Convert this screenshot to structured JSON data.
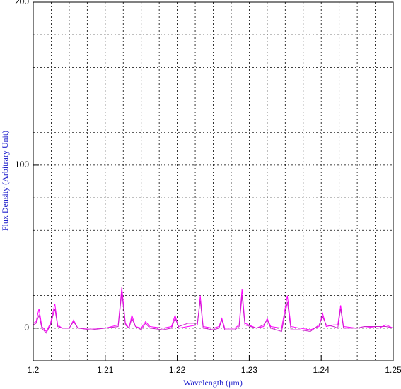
{
  "chart_data": {
    "type": "line",
    "x_label": "Wavelength (μm)",
    "y_label": "Flux Density (Arbitrary Unit)",
    "x": [
      1.2,
      1.2004,
      1.2008,
      1.2012,
      1.2018,
      1.2024,
      1.203,
      1.2034,
      1.204,
      1.205,
      1.2056,
      1.2062,
      1.208,
      1.21,
      1.2118,
      1.2123,
      1.2128,
      1.2133,
      1.2137,
      1.2142,
      1.215,
      1.2156,
      1.2162,
      1.218,
      1.2192,
      1.2197,
      1.2202,
      1.2215,
      1.2228,
      1.2232,
      1.2236,
      1.225,
      1.2258,
      1.2262,
      1.2266,
      1.228,
      1.2286,
      1.229,
      1.2294,
      1.231,
      1.232,
      1.2325,
      1.233,
      1.2345,
      1.2353,
      1.2358,
      1.237,
      1.2385,
      1.2397,
      1.2402,
      1.2407,
      1.2417,
      1.2423,
      1.2427,
      1.2431,
      1.245,
      1.246,
      1.248,
      1.249,
      1.25
    ],
    "series": [
      {
        "color": "#ff00ff",
        "values": [
          3,
          4,
          12,
          1,
          -2,
          3,
          15,
          2,
          0,
          0,
          5,
          0,
          0,
          0,
          2,
          25,
          3,
          0,
          8,
          1,
          0,
          4,
          1,
          0,
          1,
          8,
          0,
          1,
          2,
          20,
          1,
          0,
          1,
          6,
          0,
          0,
          2,
          24,
          3,
          0,
          1,
          6,
          1,
          0,
          20,
          1,
          0,
          -1,
          1,
          9,
          1,
          2,
          2,
          14,
          1,
          0,
          1,
          0,
          2,
          0
        ]
      },
      {
        "color": "#cc22cc",
        "values": [
          2,
          3,
          8,
          0,
          -3,
          2,
          12,
          1,
          0,
          0,
          4,
          0,
          -1,
          0,
          1,
          22,
          2,
          0,
          6,
          1,
          -1,
          3,
          0,
          -1,
          0,
          6,
          1,
          3,
          3,
          17,
          0,
          -1,
          0,
          5,
          -1,
          -1,
          1,
          20,
          2,
          0,
          2,
          5,
          0,
          -2,
          16,
          -1,
          -1,
          -2,
          2,
          7,
          2,
          1,
          0,
          12,
          0,
          0,
          1,
          1,
          1,
          0
        ]
      }
    ],
    "xlim": [
      1.2,
      1.25
    ],
    "ylim": [
      -20,
      200
    ],
    "xticks": [
      1.2,
      1.21,
      1.22,
      1.23,
      1.24,
      1.25
    ],
    "yticks": [
      0,
      100,
      200
    ],
    "xgrid": [
      1.2025,
      1.205,
      1.2075,
      1.21,
      1.2125,
      1.215,
      1.2175,
      1.22,
      1.2225,
      1.225,
      1.2275,
      1.23,
      1.2325,
      1.235,
      1.2375,
      1.24,
      1.2425,
      1.245,
      1.2475
    ],
    "ygrid": [
      0,
      20,
      40,
      60,
      80,
      100,
      120,
      140,
      160,
      180
    ],
    "grid": true
  }
}
